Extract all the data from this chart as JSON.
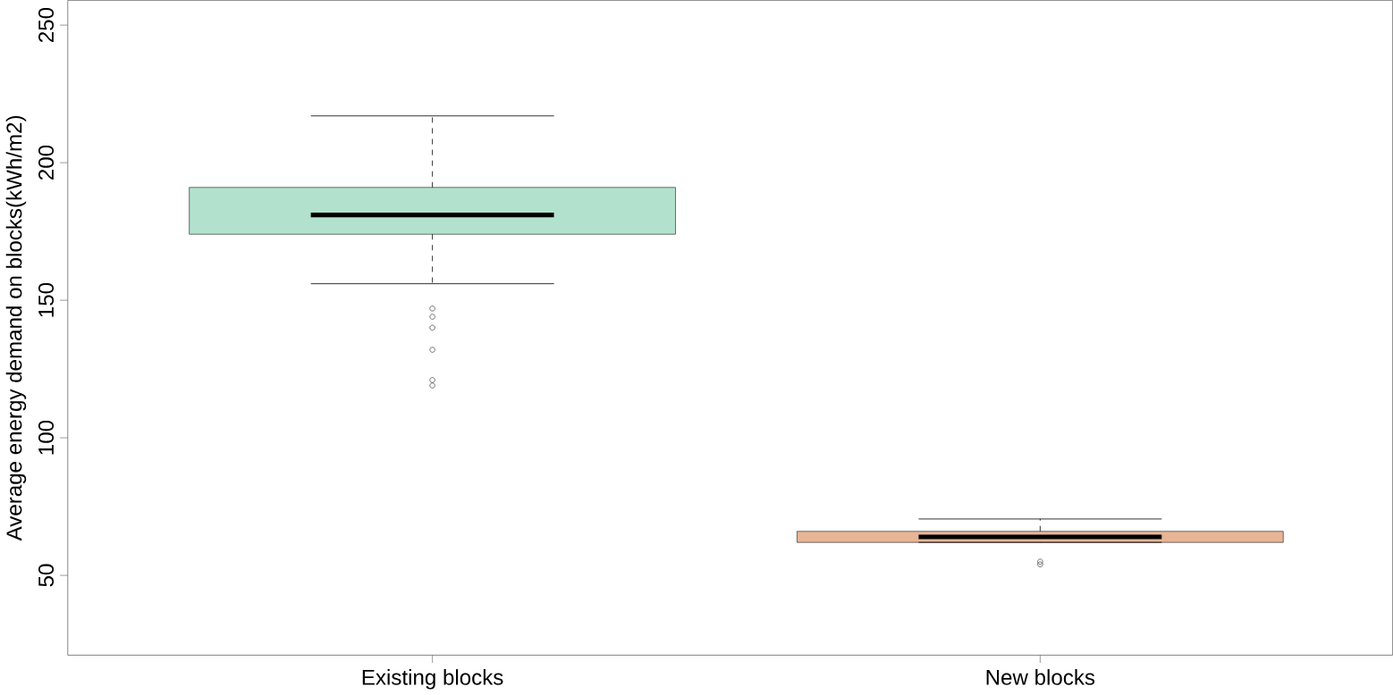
{
  "chart_data": {
    "type": "box",
    "ylabel": "Average energy demand on blocks(kWh/m2)",
    "categories": [
      "Existing blocks",
      "New blocks"
    ],
    "colors": [
      "#b2e2cd",
      "#e8b596"
    ],
    "boxes": [
      {
        "low": 156,
        "q1": 174,
        "median": 181,
        "q3": 191,
        "high": 217,
        "outliers": [
          147,
          144,
          140,
          132,
          121,
          119
        ]
      },
      {
        "low": 62,
        "q1": 62,
        "median": 64,
        "q3": 66,
        "high": 70.5,
        "outliers": [
          55,
          54
        ]
      }
    ],
    "ylim": [
      21,
      259
    ],
    "yticks": [
      50,
      100,
      150,
      200,
      250
    ],
    "grid": false
  }
}
